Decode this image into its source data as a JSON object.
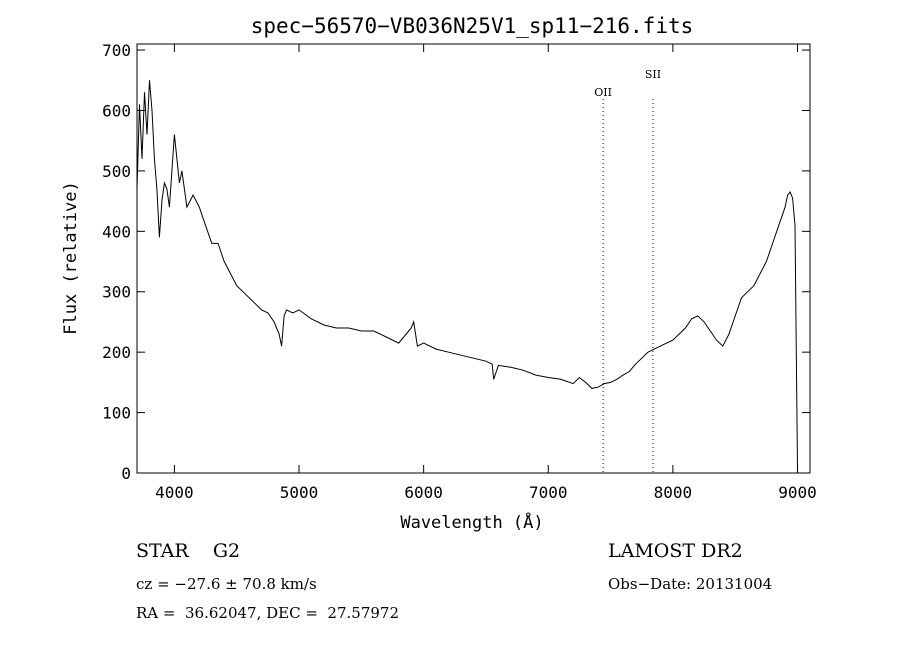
{
  "chart_data": {
    "type": "line",
    "title": "spec−56570−VB036N25V1_sp11−216.fits",
    "xlabel": "Wavelength (Å)",
    "ylabel": "Flux (relative)",
    "xlim": [
      3700,
      9100
    ],
    "ylim": [
      0,
      710
    ],
    "x_ticks": [
      4000,
      5000,
      6000,
      7000,
      8000,
      9000
    ],
    "y_ticks": [
      0,
      100,
      200,
      300,
      400,
      500,
      600,
      700
    ],
    "grid": false,
    "line_color": "#000000",
    "series": [
      {
        "x": [
          3700,
          3720,
          3740,
          3760,
          3780,
          3800,
          3820,
          3840,
          3860,
          3880,
          3900,
          3920,
          3940,
          3960,
          3980,
          4000,
          4020,
          4040,
          4060,
          4080,
          4100,
          4150,
          4200,
          4250,
          4300,
          4350,
          4400,
          4450,
          4500,
          4550,
          4600,
          4650,
          4700,
          4750,
          4800,
          4840,
          4860,
          4880,
          4900,
          4950,
          5000,
          5100,
          5200,
          5300,
          5400,
          5500,
          5600,
          5700,
          5800,
          5880,
          5900,
          5920,
          5950,
          6000,
          6100,
          6200,
          6300,
          6400,
          6500,
          6550,
          6562,
          6600,
          6700,
          6800,
          6900,
          7000,
          7100,
          7200,
          7250,
          7300,
          7350,
          7400,
          7450,
          7500,
          7550,
          7600,
          7650,
          7700,
          7750,
          7800,
          7850,
          7900,
          8000,
          8100,
          8150,
          8200,
          8250,
          8300,
          8350,
          8400,
          8450,
          8500,
          8550,
          8600,
          8650,
          8700,
          8750,
          8800,
          8850,
          8900,
          8920,
          8940,
          8960,
          8980,
          9000
        ],
        "y": [
          470,
          610,
          520,
          630,
          560,
          650,
          600,
          520,
          470,
          390,
          450,
          480,
          470,
          440,
          500,
          560,
          520,
          480,
          500,
          470,
          440,
          460,
          440,
          410,
          380,
          380,
          350,
          330,
          310,
          300,
          290,
          280,
          270,
          265,
          250,
          230,
          210,
          260,
          270,
          265,
          270,
          255,
          245,
          240,
          240,
          235,
          235,
          225,
          215,
          235,
          240,
          250,
          210,
          215,
          205,
          200,
          195,
          190,
          185,
          180,
          155,
          178,
          175,
          170,
          162,
          158,
          155,
          148,
          158,
          150,
          140,
          142,
          148,
          150,
          155,
          162,
          168,
          180,
          190,
          200,
          205,
          210,
          220,
          240,
          255,
          260,
          250,
          235,
          220,
          210,
          230,
          260,
          290,
          300,
          310,
          330,
          350,
          380,
          410,
          440,
          460,
          465,
          455,
          410,
          5
        ]
      }
    ],
    "annotations": [
      {
        "label": "OII",
        "x": 7440
      },
      {
        "label": "SII",
        "x": 7840
      }
    ],
    "footer": {
      "object": "STAR    G2",
      "survey": "LAMOST DR2",
      "cz": "cz = −27.6 ± 70.8 km/s",
      "obs_date": "Obs−Date: 20131004",
      "coords": "RA =  36.62047, DEC =  27.57972"
    }
  }
}
